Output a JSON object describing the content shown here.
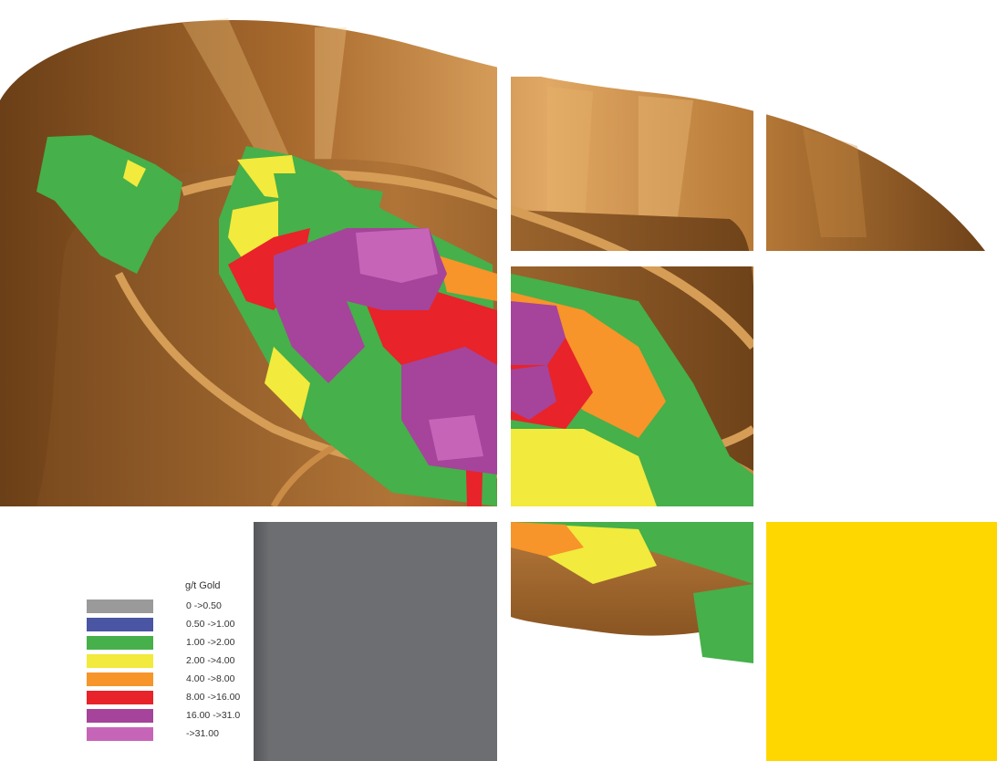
{
  "legend": {
    "title": "g/t Gold",
    "entries": [
      {
        "label": "0 ->0.50",
        "color": "#9a9a9a"
      },
      {
        "label": "0.50 ->1.00",
        "color": "#4a55a3"
      },
      {
        "label": "1.00 ->2.00",
        "color": "#46b04a"
      },
      {
        "label": "2.00 ->4.00",
        "color": "#f2ea3c"
      },
      {
        "label": "4.00 ->8.00",
        "color": "#f7942a"
      },
      {
        "label": "8.00 ->16.00",
        "color": "#e8232a"
      },
      {
        "label": "16.00 ->31.0",
        "color": "#a5449a"
      },
      {
        "label": "->31.00",
        "color": "#c665b8"
      }
    ]
  },
  "colors": {
    "pit_dark": "#6b3f17",
    "pit_mid": "#9c6128",
    "pit_light": "#d59d56",
    "pit_highlight": "#e6b46c",
    "panel_grey": "#6d6e71",
    "panel_yellow": "#ffd700"
  }
}
